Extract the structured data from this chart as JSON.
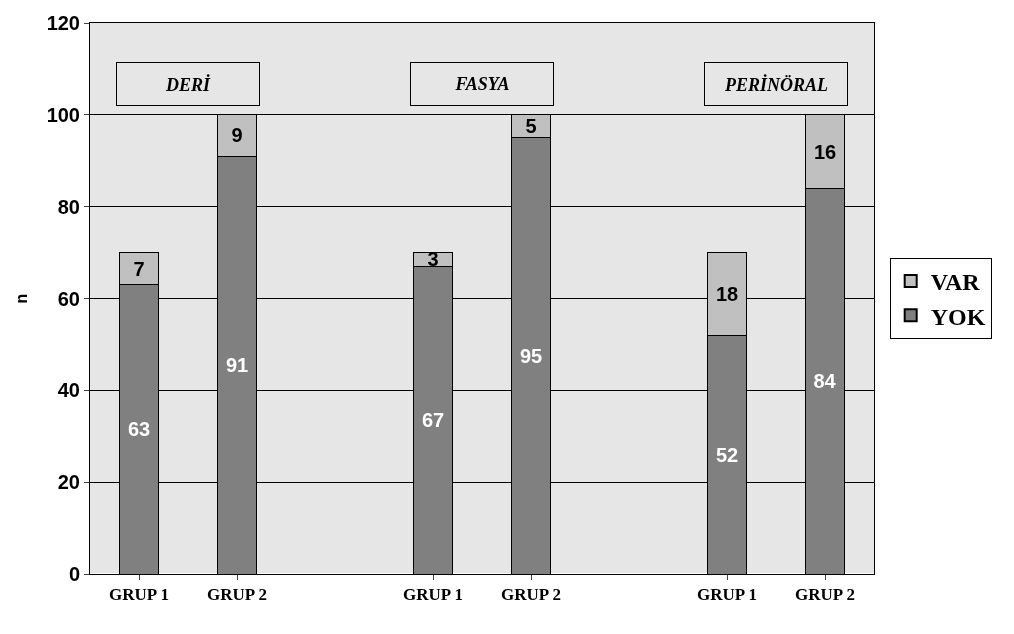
{
  "chart_data": {
    "type": "bar",
    "stacked": true,
    "ylabel": "n",
    "categories": [
      "GRUP 1",
      "GRUP 2",
      null,
      "GRUP 1",
      "GRUP 2",
      null,
      "GRUP 1",
      "GRUP 2"
    ],
    "series": [
      {
        "name": "YOK",
        "color": "#808080",
        "values": [
          63,
          91,
          null,
          67,
          95,
          null,
          52,
          84
        ]
      },
      {
        "name": "VAR",
        "color": "#c0c0c0",
        "values": [
          7,
          9,
          null,
          3,
          5,
          null,
          18,
          16
        ]
      }
    ],
    "annotations": [
      "DERİ",
      "FASYA",
      "PERİNÖRAL"
    ],
    "ylim": [
      0,
      120
    ],
    "yticks": [
      0,
      20,
      40,
      60,
      80,
      100,
      120
    ],
    "grid": "y",
    "legend": "right",
    "data_labels": true
  }
}
